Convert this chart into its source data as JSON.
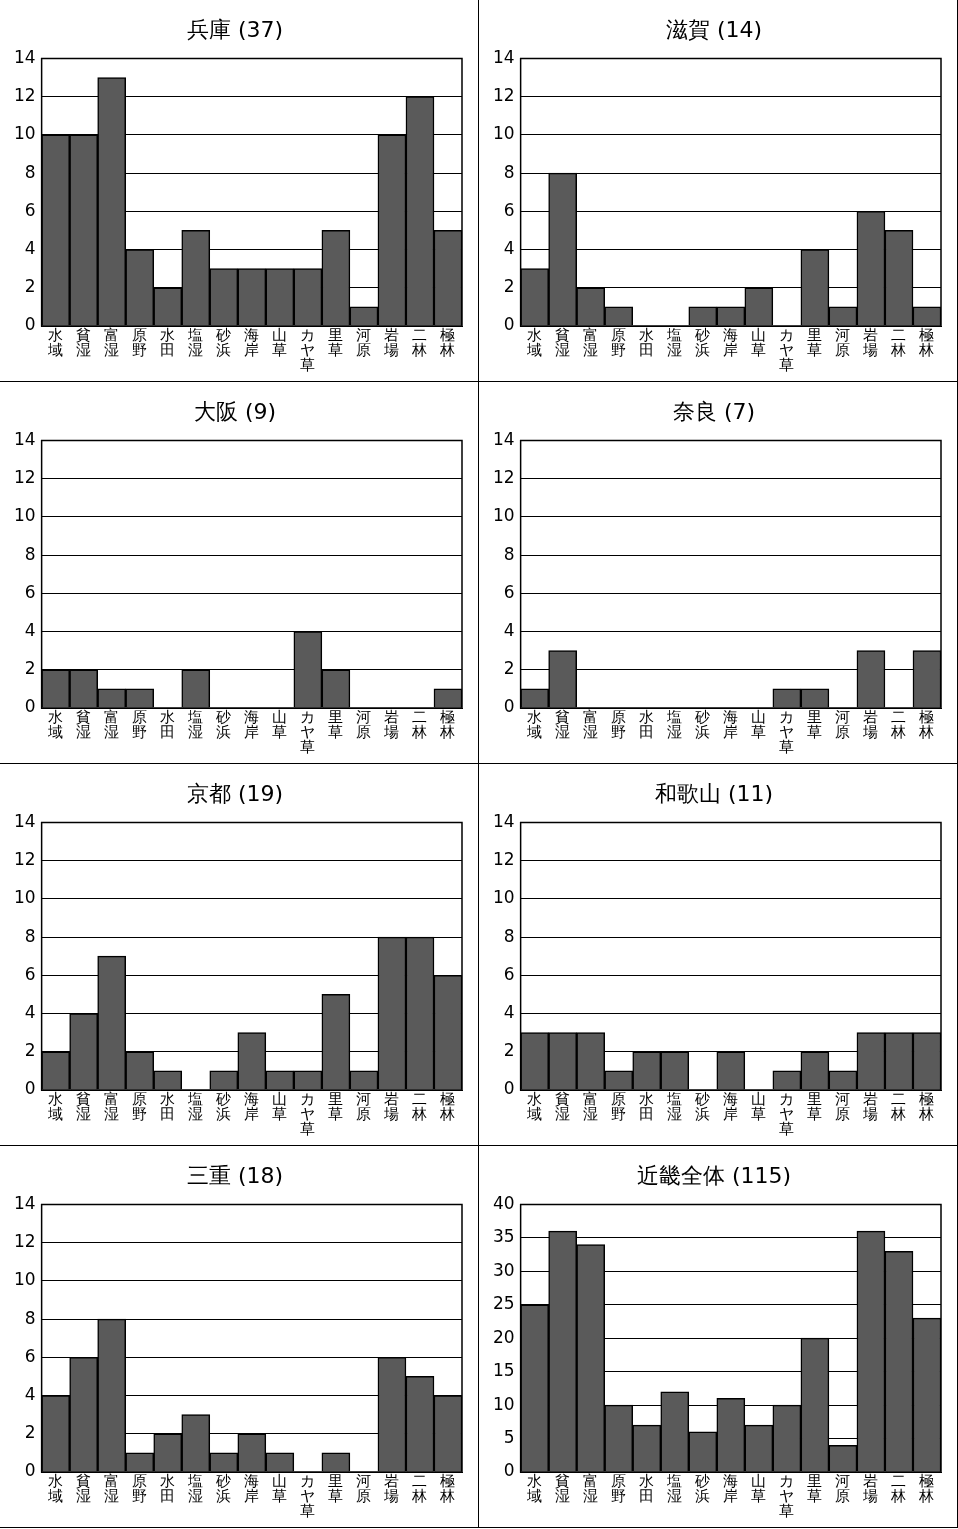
{
  "chart_data": [
    {
      "type": "bar",
      "title": "兵庫 (37)",
      "categories": [
        "水域",
        "貧湿",
        "富湿",
        "原野",
        "水田",
        "塩湿",
        "砂浜",
        "海岸",
        "山草",
        "カヤ草",
        "里草",
        "河原",
        "岩場",
        "二林",
        "極林"
      ],
      "values": [
        10,
        10,
        13,
        4,
        2,
        5,
        3,
        3,
        3,
        3,
        5,
        1,
        10,
        12,
        5
      ],
      "color": "#5a5a5a",
      "ylim": [
        0,
        14
      ],
      "yticks": [
        0,
        2,
        4,
        6,
        8,
        10,
        12,
        14
      ],
      "grid": "y",
      "legend": false
    },
    {
      "type": "bar",
      "title": "滋賀 (14)",
      "categories": [
        "水域",
        "貧湿",
        "富湿",
        "原野",
        "水田",
        "塩湿",
        "砂浜",
        "海岸",
        "山草",
        "カヤ草",
        "里草",
        "河原",
        "岩場",
        "二林",
        "極林"
      ],
      "values": [
        3,
        8,
        2,
        1,
        0,
        0,
        1,
        1,
        2,
        0,
        4,
        1,
        6,
        5,
        1
      ],
      "color": "#5a5a5a",
      "ylim": [
        0,
        14
      ],
      "yticks": [
        0,
        2,
        4,
        6,
        8,
        10,
        12,
        14
      ],
      "grid": "y",
      "legend": false
    },
    {
      "type": "bar",
      "title": "大阪 (9)",
      "categories": [
        "水域",
        "貧湿",
        "富湿",
        "原野",
        "水田",
        "塩湿",
        "砂浜",
        "海岸",
        "山草",
        "カヤ草",
        "里草",
        "河原",
        "岩場",
        "二林",
        "極林"
      ],
      "values": [
        2,
        2,
        1,
        1,
        0,
        2,
        0,
        0,
        0,
        4,
        2,
        0,
        0,
        0,
        1
      ],
      "color": "#5a5a5a",
      "ylim": [
        0,
        14
      ],
      "yticks": [
        0,
        2,
        4,
        6,
        8,
        10,
        12,
        14
      ],
      "grid": "y",
      "legend": false
    },
    {
      "type": "bar",
      "title": "奈良 (7)",
      "categories": [
        "水域",
        "貧湿",
        "富湿",
        "原野",
        "水田",
        "塩湿",
        "砂浜",
        "海岸",
        "山草",
        "カヤ草",
        "里草",
        "河原",
        "岩場",
        "二林",
        "極林"
      ],
      "values": [
        1,
        3,
        0,
        0,
        0,
        0,
        0,
        0,
        0,
        1,
        1,
        0,
        3,
        0,
        3
      ],
      "color": "#5a5a5a",
      "ylim": [
        0,
        14
      ],
      "yticks": [
        0,
        2,
        4,
        6,
        8,
        10,
        12,
        14
      ],
      "grid": "y",
      "legend": false
    },
    {
      "type": "bar",
      "title": "京都 (19)",
      "categories": [
        "水域",
        "貧湿",
        "富湿",
        "原野",
        "水田",
        "塩湿",
        "砂浜",
        "海岸",
        "山草",
        "カヤ草",
        "里草",
        "河原",
        "岩場",
        "二林",
        "極林"
      ],
      "values": [
        2,
        4,
        7,
        2,
        1,
        0,
        1,
        3,
        1,
        1,
        5,
        1,
        8,
        8,
        6
      ],
      "color": "#5a5a5a",
      "ylim": [
        0,
        14
      ],
      "yticks": [
        0,
        2,
        4,
        6,
        8,
        10,
        12,
        14
      ],
      "grid": "y",
      "legend": false
    },
    {
      "type": "bar",
      "title": "和歌山 (11)",
      "categories": [
        "水域",
        "貧湿",
        "富湿",
        "原野",
        "水田",
        "塩湿",
        "砂浜",
        "海岸",
        "山草",
        "カヤ草",
        "里草",
        "河原",
        "岩場",
        "二林",
        "極林"
      ],
      "values": [
        3,
        3,
        3,
        1,
        2,
        2,
        0,
        2,
        0,
        1,
        2,
        1,
        3,
        3,
        3
      ],
      "color": "#5a5a5a",
      "ylim": [
        0,
        14
      ],
      "yticks": [
        0,
        2,
        4,
        6,
        8,
        10,
        12,
        14
      ],
      "grid": "y",
      "legend": false
    },
    {
      "type": "bar",
      "title": "三重 (18)",
      "categories": [
        "水域",
        "貧湿",
        "富湿",
        "原野",
        "水田",
        "塩湿",
        "砂浜",
        "海岸",
        "山草",
        "カヤ草",
        "里草",
        "河原",
        "岩場",
        "二林",
        "極林"
      ],
      "values": [
        4,
        6,
        8,
        1,
        2,
        3,
        1,
        2,
        1,
        0,
        1,
        0,
        6,
        5,
        4
      ],
      "color": "#5a5a5a",
      "ylim": [
        0,
        14
      ],
      "yticks": [
        0,
        2,
        4,
        6,
        8,
        10,
        12,
        14
      ],
      "grid": "y",
      "legend": false
    },
    {
      "type": "bar",
      "title": "近畿全体 (115)",
      "categories": [
        "水域",
        "貧湿",
        "富湿",
        "原野",
        "水田",
        "塩湿",
        "砂浜",
        "海岸",
        "山草",
        "カヤ草",
        "里草",
        "河原",
        "岩場",
        "二林",
        "極林"
      ],
      "values": [
        25,
        36,
        34,
        10,
        7,
        12,
        6,
        11,
        7,
        10,
        20,
        4,
        36,
        33,
        23
      ],
      "color": "#5a5a5a",
      "ylim": [
        0,
        40
      ],
      "yticks": [
        0,
        5,
        10,
        15,
        20,
        25,
        30,
        35,
        40
      ],
      "grid": "y",
      "legend": false
    }
  ]
}
